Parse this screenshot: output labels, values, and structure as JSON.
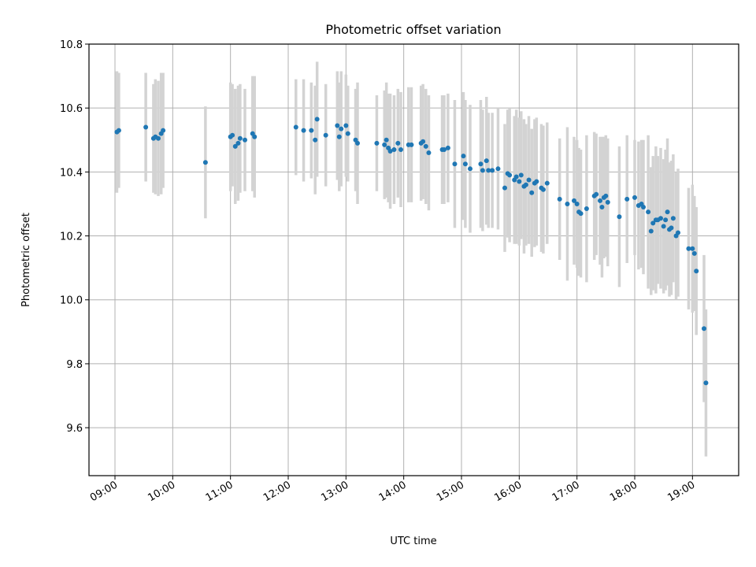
{
  "chart_data": {
    "type": "scatter",
    "title": "Photometric offset variation",
    "xlabel": "UTC time",
    "ylabel": "Photometric offset",
    "xlim": [
      "08:33",
      "19:48"
    ],
    "ylim": [
      9.45,
      10.8
    ],
    "grid": true,
    "colors": {
      "point": "#1f77b4",
      "errorbar": "#d3d3d3",
      "grid": "#b0b0b0"
    },
    "x_ticks": [
      "09:00",
      "10:00",
      "11:00",
      "12:00",
      "13:00",
      "14:00",
      "15:00",
      "16:00",
      "17:00",
      "18:00",
      "19:00"
    ],
    "y_ticks": [
      "9.6",
      "9.8",
      "10.0",
      "10.2",
      "10.4",
      "10.6",
      "10.8"
    ],
    "points": [
      {
        "t": "09:02",
        "y": 10.525,
        "e": 0.19
      },
      {
        "t": "09:04",
        "y": 10.53,
        "e": 0.18
      },
      {
        "t": "09:32",
        "y": 10.54,
        "e": 0.17
      },
      {
        "t": "09:40",
        "y": 10.505,
        "e": 0.17
      },
      {
        "t": "09:42",
        "y": 10.51,
        "e": 0.18
      },
      {
        "t": "09:45",
        "y": 10.505,
        "e": 0.18
      },
      {
        "t": "09:48",
        "y": 10.52,
        "e": 0.19
      },
      {
        "t": "09:50",
        "y": 10.53,
        "e": 0.18
      },
      {
        "t": "10:34",
        "y": 10.43,
        "e": 0.175
      },
      {
        "t": "11:00",
        "y": 10.51,
        "e": 0.17
      },
      {
        "t": "11:02",
        "y": 10.515,
        "e": 0.16
      },
      {
        "t": "11:05",
        "y": 10.48,
        "e": 0.18
      },
      {
        "t": "11:08",
        "y": 10.49,
        "e": 0.18
      },
      {
        "t": "11:10",
        "y": 10.505,
        "e": 0.17
      },
      {
        "t": "11:15",
        "y": 10.5,
        "e": 0.16
      },
      {
        "t": "11:23",
        "y": 10.52,
        "e": 0.18
      },
      {
        "t": "11:25",
        "y": 10.51,
        "e": 0.19
      },
      {
        "t": "12:08",
        "y": 10.54,
        "e": 0.15
      },
      {
        "t": "12:16",
        "y": 10.53,
        "e": 0.16
      },
      {
        "t": "12:24",
        "y": 10.53,
        "e": 0.15
      },
      {
        "t": "12:28",
        "y": 10.5,
        "e": 0.17
      },
      {
        "t": "12:30",
        "y": 10.565,
        "e": 0.18
      },
      {
        "t": "12:39",
        "y": 10.515,
        "e": 0.16
      },
      {
        "t": "12:51",
        "y": 10.545,
        "e": 0.17
      },
      {
        "t": "12:53",
        "y": 10.51,
        "e": 0.17
      },
      {
        "t": "12:55",
        "y": 10.535,
        "e": 0.18
      },
      {
        "t": "13:00",
        "y": 10.545,
        "e": 0.16
      },
      {
        "t": "13:02",
        "y": 10.52,
        "e": 0.15
      },
      {
        "t": "13:10",
        "y": 10.5,
        "e": 0.16
      },
      {
        "t": "13:12",
        "y": 10.49,
        "e": 0.19
      },
      {
        "t": "13:32",
        "y": 10.49,
        "e": 0.15
      },
      {
        "t": "13:40",
        "y": 10.485,
        "e": 0.17
      },
      {
        "t": "13:42",
        "y": 10.5,
        "e": 0.18
      },
      {
        "t": "13:44",
        "y": 10.475,
        "e": 0.17
      },
      {
        "t": "13:46",
        "y": 10.465,
        "e": 0.18
      },
      {
        "t": "13:50",
        "y": 10.47,
        "e": 0.17
      },
      {
        "t": "13:54",
        "y": 10.49,
        "e": 0.17
      },
      {
        "t": "13:57",
        "y": 10.47,
        "e": 0.18
      },
      {
        "t": "14:05",
        "y": 10.485,
        "e": 0.18
      },
      {
        "t": "14:08",
        "y": 10.485,
        "e": 0.18
      },
      {
        "t": "14:18",
        "y": 10.49,
        "e": 0.18
      },
      {
        "t": "14:20",
        "y": 10.495,
        "e": 0.18
      },
      {
        "t": "14:23",
        "y": 10.48,
        "e": 0.18
      },
      {
        "t": "14:26",
        "y": 10.46,
        "e": 0.18
      },
      {
        "t": "14:40",
        "y": 10.47,
        "e": 0.17
      },
      {
        "t": "14:42",
        "y": 10.47,
        "e": 0.17
      },
      {
        "t": "14:46",
        "y": 10.475,
        "e": 0.17
      },
      {
        "t": "14:53",
        "y": 10.425,
        "e": 0.2
      },
      {
        "t": "15:02",
        "y": 10.45,
        "e": 0.2
      },
      {
        "t": "15:04",
        "y": 10.425,
        "e": 0.2
      },
      {
        "t": "15:09",
        "y": 10.41,
        "e": 0.2
      },
      {
        "t": "15:20",
        "y": 10.425,
        "e": 0.2
      },
      {
        "t": "15:22",
        "y": 10.405,
        "e": 0.19
      },
      {
        "t": "15:26",
        "y": 10.435,
        "e": 0.2
      },
      {
        "t": "15:28",
        "y": 10.405,
        "e": 0.18
      },
      {
        "t": "15:32",
        "y": 10.405,
        "e": 0.18
      },
      {
        "t": "15:38",
        "y": 10.41,
        "e": 0.19
      },
      {
        "t": "15:45",
        "y": 10.35,
        "e": 0.2
      },
      {
        "t": "15:48",
        "y": 10.395,
        "e": 0.2
      },
      {
        "t": "15:50",
        "y": 10.39,
        "e": 0.21
      },
      {
        "t": "15:55",
        "y": 10.375,
        "e": 0.2
      },
      {
        "t": "15:57",
        "y": 10.385,
        "e": 0.21
      },
      {
        "t": "16:00",
        "y": 10.37,
        "e": 0.2
      },
      {
        "t": "16:02",
        "y": 10.39,
        "e": 0.2
      },
      {
        "t": "16:05",
        "y": 10.355,
        "e": 0.21
      },
      {
        "t": "16:07",
        "y": 10.36,
        "e": 0.19
      },
      {
        "t": "16:10",
        "y": 10.375,
        "e": 0.2
      },
      {
        "t": "16:13",
        "y": 10.335,
        "e": 0.2
      },
      {
        "t": "16:16",
        "y": 10.365,
        "e": 0.2
      },
      {
        "t": "16:18",
        "y": 10.37,
        "e": 0.2
      },
      {
        "t": "16:23",
        "y": 10.35,
        "e": 0.2
      },
      {
        "t": "16:25",
        "y": 10.345,
        "e": 0.2
      },
      {
        "t": "16:29",
        "y": 10.365,
        "e": 0.19
      },
      {
        "t": "16:42",
        "y": 10.315,
        "e": 0.19
      },
      {
        "t": "16:50",
        "y": 10.3,
        "e": 0.24
      },
      {
        "t": "16:57",
        "y": 10.31,
        "e": 0.2
      },
      {
        "t": "17:00",
        "y": 10.3,
        "e": 0.2
      },
      {
        "t": "17:02",
        "y": 10.275,
        "e": 0.2
      },
      {
        "t": "17:04",
        "y": 10.27,
        "e": 0.2
      },
      {
        "t": "17:10",
        "y": 10.285,
        "e": 0.23
      },
      {
        "t": "17:18",
        "y": 10.325,
        "e": 0.2
      },
      {
        "t": "17:20",
        "y": 10.33,
        "e": 0.19
      },
      {
        "t": "17:24",
        "y": 10.31,
        "e": 0.2
      },
      {
        "t": "17:26",
        "y": 10.29,
        "e": 0.22
      },
      {
        "t": "17:28",
        "y": 10.32,
        "e": 0.19
      },
      {
        "t": "17:30",
        "y": 10.325,
        "e": 0.19
      },
      {
        "t": "17:32",
        "y": 10.305,
        "e": 0.2
      },
      {
        "t": "17:44",
        "y": 10.26,
        "e": 0.22
      },
      {
        "t": "17:52",
        "y": 10.315,
        "e": 0.2
      },
      {
        "t": "18:00",
        "y": 10.32,
        "e": 0.18
      },
      {
        "t": "18:04",
        "y": 10.295,
        "e": 0.2
      },
      {
        "t": "18:07",
        "y": 10.3,
        "e": 0.2
      },
      {
        "t": "18:09",
        "y": 10.29,
        "e": 0.21
      },
      {
        "t": "18:14",
        "y": 10.275,
        "e": 0.24
      },
      {
        "t": "18:17",
        "y": 10.215,
        "e": 0.2
      },
      {
        "t": "18:19",
        "y": 10.24,
        "e": 0.21
      },
      {
        "t": "18:22",
        "y": 10.25,
        "e": 0.23
      },
      {
        "t": "18:24",
        "y": 10.25,
        "e": 0.2
      },
      {
        "t": "18:27",
        "y": 10.255,
        "e": 0.22
      },
      {
        "t": "18:30",
        "y": 10.23,
        "e": 0.21
      },
      {
        "t": "18:32",
        "y": 10.25,
        "e": 0.22
      },
      {
        "t": "18:34",
        "y": 10.275,
        "e": 0.23
      },
      {
        "t": "18:36",
        "y": 10.22,
        "e": 0.21
      },
      {
        "t": "18:38",
        "y": 10.225,
        "e": 0.21
      },
      {
        "t": "18:40",
        "y": 10.255,
        "e": 0.2
      },
      {
        "t": "18:43",
        "y": 10.2,
        "e": 0.2
      },
      {
        "t": "18:45",
        "y": 10.21,
        "e": 0.2
      },
      {
        "t": "18:56",
        "y": 10.16,
        "e": 0.19
      },
      {
        "t": "19:00",
        "y": 10.16,
        "e": 0.2
      },
      {
        "t": "19:02",
        "y": 10.145,
        "e": 0.18
      },
      {
        "t": "19:04",
        "y": 10.09,
        "e": 0.2
      },
      {
        "t": "19:12",
        "y": 9.91,
        "e": 0.23
      },
      {
        "t": "19:14",
        "y": 9.74,
        "e": 0.23
      }
    ]
  }
}
